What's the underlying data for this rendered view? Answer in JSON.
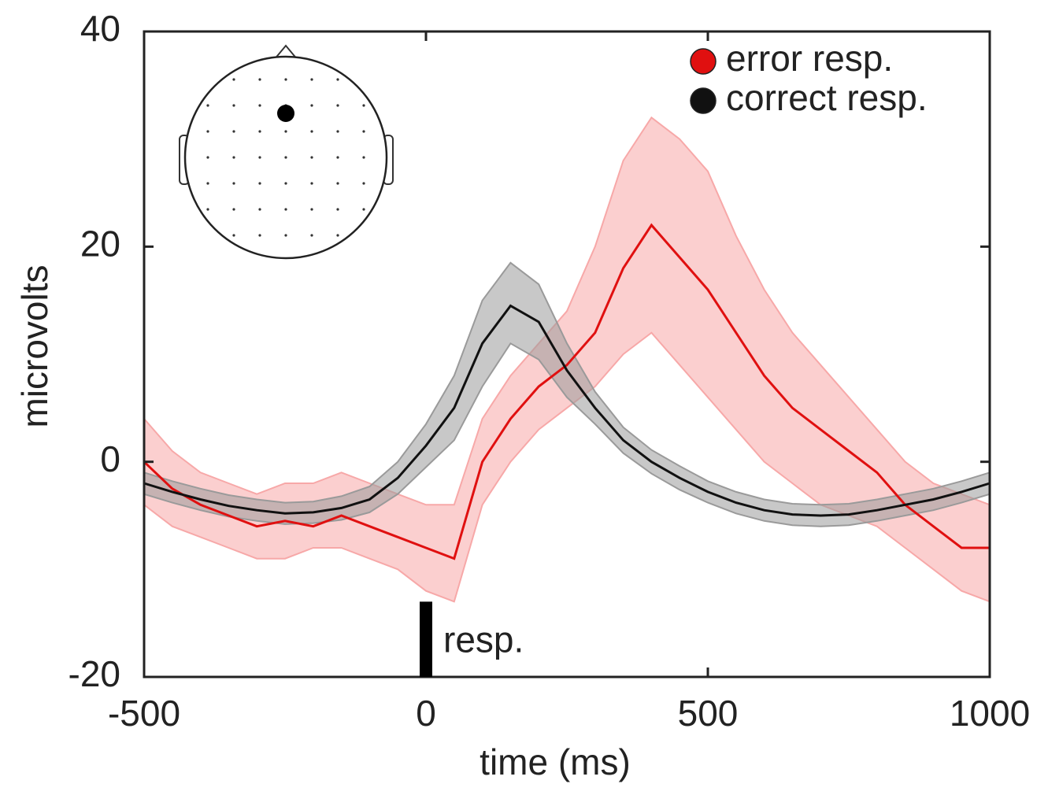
{
  "chart_data": {
    "type": "line",
    "xlabel": "time (ms)",
    "ylabel": "microvolts",
    "x": [
      -500,
      -450,
      -400,
      -350,
      -300,
      -250,
      -200,
      -150,
      -100,
      -50,
      0,
      50,
      100,
      150,
      200,
      250,
      300,
      350,
      400,
      450,
      500,
      550,
      600,
      650,
      700,
      750,
      800,
      850,
      900,
      950,
      1000
    ],
    "series": [
      {
        "name": "error resp.",
        "color": "#e01010",
        "band_color": "#f7a8a8",
        "values": [
          0,
          -2.5,
          -4,
          -5,
          -6,
          -5.5,
          -6,
          -5,
          -6,
          -7,
          -8,
          -9,
          0,
          4,
          7,
          9,
          12,
          18,
          22,
          19,
          16,
          12,
          8,
          5,
          3,
          1,
          -1,
          -4,
          -6,
          -8,
          -8
        ],
        "upper": [
          4,
          1,
          -1,
          -2,
          -3,
          -2,
          -2,
          -1,
          -2,
          -3,
          -4,
          -4,
          4,
          8,
          11,
          14,
          20,
          28,
          32,
          30,
          27,
          21,
          16,
          12,
          9,
          6,
          3,
          0,
          -2,
          -3,
          -4
        ],
        "lower": [
          -4,
          -6,
          -7,
          -8,
          -9,
          -9,
          -8,
          -8,
          -9,
          -10,
          -12,
          -13,
          -4,
          0,
          3,
          5,
          7,
          10,
          12,
          9,
          6,
          3,
          0,
          -2,
          -4,
          -5,
          -6,
          -8,
          -10,
          -12,
          -13
        ]
      },
      {
        "name": "correct resp.",
        "color": "#111111",
        "band_color": "#9a9a9a",
        "values": [
          -2,
          -2.8,
          -3.5,
          -4.1,
          -4.5,
          -4.8,
          -4.7,
          -4.3,
          -3.5,
          -1.5,
          1.5,
          5,
          11,
          14.5,
          13,
          8.5,
          5,
          2,
          0,
          -1.5,
          -2.8,
          -3.8,
          -4.5,
          -4.9,
          -5,
          -4.9,
          -4.5,
          -4,
          -3.5,
          -2.8,
          -2
        ],
        "upper": [
          -1,
          -1.8,
          -2.5,
          -3.1,
          -3.5,
          -3.8,
          -3.7,
          -3.2,
          -2.3,
          0,
          3.5,
          8,
          15,
          18.5,
          16.5,
          11,
          6.5,
          3.2,
          1.1,
          -0.4,
          -1.8,
          -2.8,
          -3.5,
          -3.9,
          -4,
          -3.9,
          -3.5,
          -3,
          -2.5,
          -1.8,
          -1
        ],
        "lower": [
          -3,
          -3.8,
          -4.5,
          -5.1,
          -5.5,
          -5.8,
          -5.7,
          -5.4,
          -4.7,
          -3,
          -0.5,
          2,
          7,
          11,
          9.5,
          6,
          3.5,
          0.8,
          -1.1,
          -2.6,
          -3.8,
          -4.8,
          -5.5,
          -5.9,
          -6,
          -5.9,
          -5.5,
          -5,
          -4.5,
          -3.8,
          -3
        ]
      }
    ],
    "annotation": {
      "text": "resp.",
      "x": 0,
      "y": [
        -13,
        -20
      ]
    },
    "xlim": [
      -500,
      1000
    ],
    "xticks": [
      -500,
      0,
      500,
      1000
    ],
    "ylim": [
      -20,
      40
    ],
    "yticks": [
      -20,
      0,
      20,
      40
    ],
    "legend": "upper right"
  }
}
